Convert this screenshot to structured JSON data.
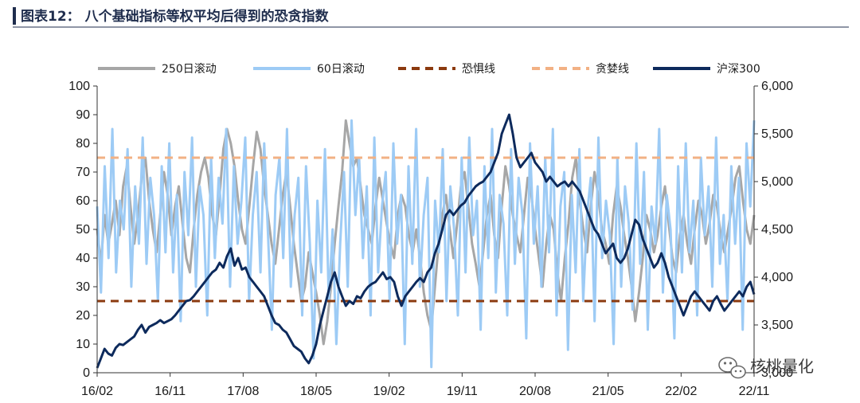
{
  "title": "图表12： 八个基础指标等权平均后得到的恐贪指数",
  "watermark": "核桃量化",
  "chart_data": {
    "type": "line",
    "x_ticks": [
      "16/02",
      "16/11",
      "17/08",
      "18/05",
      "19/02",
      "19/11",
      "20/08",
      "21/05",
      "22/02",
      "22/11"
    ],
    "y_left": {
      "ticks": [
        "0",
        "10",
        "20",
        "30",
        "40",
        "50",
        "60",
        "70",
        "80",
        "90",
        "100"
      ],
      "range": [
        0,
        100
      ]
    },
    "y_right": {
      "ticks": [
        "3,000",
        "3,500",
        "4,000",
        "4,500",
        "5,000",
        "5,500",
        "6,000"
      ],
      "range": [
        3000,
        6000
      ]
    },
    "series": [
      {
        "name": "250日滚动",
        "axis": "left",
        "color": "#a6a6a6",
        "values": [
          50,
          38,
          55,
          45,
          52,
          60,
          48,
          65,
          72,
          58,
          45,
          55,
          68,
          75,
          60,
          50,
          42,
          55,
          70,
          62,
          48,
          58,
          65,
          52,
          40,
          35,
          50,
          62,
          70,
          75,
          68,
          55,
          48,
          62,
          78,
          85,
          80,
          72,
          60,
          50,
          45,
          58,
          72,
          84,
          78,
          65,
          55,
          45,
          38,
          50,
          62,
          70,
          58,
          45,
          35,
          25,
          30,
          42,
          35,
          28,
          20,
          10,
          18,
          30,
          45,
          58,
          70,
          88,
          80,
          72,
          75,
          65,
          55,
          50,
          45,
          58,
          68,
          60,
          52,
          45,
          40,
          55,
          62,
          58,
          48,
          42,
          50,
          40,
          28,
          20,
          15,
          30,
          45,
          55,
          62,
          50,
          40,
          52,
          65,
          70,
          58,
          45,
          38,
          30,
          42,
          55,
          62,
          48,
          40,
          58,
          72,
          65,
          55,
          48,
          42,
          55,
          68,
          62,
          50,
          40,
          30,
          45,
          55,
          50,
          35,
          25,
          40,
          52,
          68,
          75,
          60,
          50,
          42,
          58,
          70,
          62,
          50,
          45,
          38,
          55,
          65,
          58,
          48,
          40,
          30,
          18,
          28,
          40,
          55,
          50,
          42,
          48,
          58,
          65,
          52,
          40,
          35,
          48,
          55,
          45,
          38,
          50,
          60,
          55,
          45,
          52,
          62,
          58,
          48,
          42,
          50,
          58,
          68,
          72,
          60,
          50,
          45,
          55
        ]
      },
      {
        "name": "60日滚动",
        "axis": "left",
        "color": "#9dcbf5",
        "values": [
          58,
          28,
          72,
          40,
          85,
          35,
          60,
          50,
          78,
          30,
          65,
          45,
          82,
          38,
          68,
          55,
          25,
          72,
          42,
          80,
          35,
          62,
          18,
          70,
          48,
          82,
          30,
          65,
          55,
          20,
          75,
          40,
          68,
          52,
          85,
          30,
          72,
          45,
          60,
          82,
          25,
          55,
          70,
          35,
          80,
          48,
          15,
          62,
          75,
          40,
          85,
          30,
          55,
          68,
          20,
          72,
          45,
          5,
          60,
          35,
          78,
          25,
          50,
          10,
          45,
          70,
          30,
          88,
          55,
          75,
          40,
          65,
          20,
          82,
          35,
          58,
          70,
          25,
          80,
          45,
          62,
          10,
          72,
          38,
          85,
          30,
          55,
          68,
          2,
          60,
          42,
          78,
          25,
          65,
          50,
          20,
          75,
          35,
          82,
          48,
          60,
          15,
          72,
          40,
          85,
          28,
          62,
          52,
          20,
          78,
          38,
          68,
          55,
          12,
          80,
          45,
          65,
          30,
          75,
          42,
          85,
          20,
          58,
          70,
          8,
          62,
          35,
          78,
          25,
          55,
          68,
          18,
          82,
          40,
          60,
          48,
          10,
          75,
          30,
          65,
          52,
          22,
          80,
          38,
          70,
          15,
          58,
          45,
          85,
          28,
          62,
          50,
          12,
          72,
          35,
          80,
          42,
          60,
          20,
          75,
          48,
          65,
          30,
          82,
          38,
          55,
          25,
          72,
          45,
          68,
          15,
          80,
          58,
          88
        ]
      },
      {
        "name": "恐惧线",
        "axis": "left",
        "color": "#8b3a0f",
        "dash": true,
        "values": [
          25
        ]
      },
      {
        "name": "贪婪线",
        "axis": "left",
        "color": "#f2b184",
        "dash": true,
        "values": [
          75
        ]
      },
      {
        "name": "沪深300",
        "axis": "right",
        "color": "#0d2a5c",
        "values": [
          3050,
          3150,
          3250,
          3200,
          3180,
          3260,
          3300,
          3290,
          3320,
          3350,
          3380,
          3450,
          3500,
          3420,
          3480,
          3500,
          3520,
          3550,
          3520,
          3540,
          3560,
          3600,
          3650,
          3700,
          3750,
          3760,
          3800,
          3850,
          3900,
          3950,
          4000,
          4050,
          4080,
          4150,
          4100,
          4220,
          4300,
          4120,
          4200,
          4080,
          4100,
          4000,
          3950,
          3900,
          3850,
          3800,
          3700,
          3600,
          3520,
          3500,
          3450,
          3420,
          3350,
          3280,
          3250,
          3220,
          3150,
          3100,
          3180,
          3300,
          3500,
          3650,
          3800,
          3950,
          4050,
          3900,
          3800,
          3700,
          3750,
          3720,
          3800,
          3780,
          3850,
          3900,
          3930,
          3950,
          4000,
          4050,
          3980,
          4000,
          3950,
          3800,
          3700,
          3800,
          3850,
          3900,
          3950,
          3990,
          3950,
          4050,
          4100,
          4250,
          4350,
          4500,
          4650,
          4700,
          4650,
          4700,
          4750,
          4780,
          4850,
          4900,
          4950,
          4980,
          5000,
          5050,
          5100,
          5200,
          5300,
          5500,
          5600,
          5700,
          5500,
          5250,
          5150,
          5200,
          5250,
          5300,
          5200,
          5150,
          5100,
          5000,
          5050,
          5000,
          4950,
          4980,
          5000,
          4950,
          5000,
          4950,
          4900,
          4800,
          4700,
          4600,
          4500,
          4450,
          4350,
          4250,
          4300,
          4350,
          4200,
          4150,
          4200,
          4300,
          4450,
          4600,
          4550,
          4400,
          4300,
          4200,
          4100,
          4150,
          4250,
          4150,
          4000,
          3900,
          3800,
          3700,
          3600,
          3700,
          3800,
          3850,
          3800,
          3750,
          3700,
          3650,
          3750,
          3800,
          3720,
          3650,
          3700,
          3750,
          3800,
          3850,
          3800,
          3900,
          3950,
          3820
        ]
      }
    ]
  }
}
